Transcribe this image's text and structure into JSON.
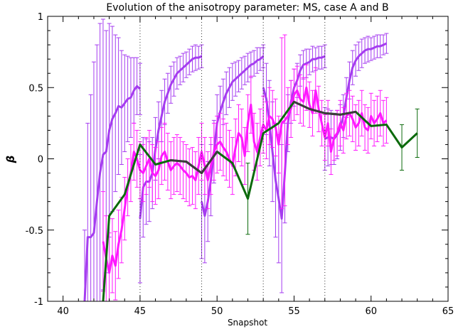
{
  "chart_data": {
    "type": "line",
    "title": "Evolution of the anisotropy parameter: MS, case A and B",
    "xlabel": "Snapshot",
    "ylabel": "β",
    "xlim": [
      39,
      65
    ],
    "ylim": [
      -1,
      1
    ],
    "x_ticks": [
      "40",
      "45",
      "50",
      "55",
      "60",
      "65"
    ],
    "y_ticks": [
      "-1",
      "-0.5",
      "0",
      "0.5",
      "1"
    ],
    "grid": false,
    "vlines": [
      45,
      49,
      53,
      57
    ],
    "colors": {
      "purple": "#a53cf0",
      "magenta": "#ff18ff",
      "green": "#0c6a0c",
      "dark": "#3c3c3c",
      "vline": "#333333"
    },
    "series": [
      {
        "color_key": "purple",
        "x": [
          41.4,
          41.6,
          41.8,
          42.0,
          42.2,
          42.4,
          42.6,
          42.8,
          43.0,
          43.2,
          43.4,
          43.6,
          43.8,
          44.0,
          44.2,
          44.4,
          44.6,
          44.8,
          45.0
        ],
        "y": [
          -1.0,
          -0.55,
          -0.55,
          -0.52,
          -0.3,
          -0.1,
          0.03,
          0.05,
          0.2,
          0.28,
          0.32,
          0.37,
          0.36,
          0.39,
          0.42,
          0.43,
          0.48,
          0.51,
          0.49
        ],
        "err": [
          0.5,
          0.8,
          1.0,
          1.2,
          1.1,
          1.05,
          0.95,
          0.85,
          0.75,
          0.65,
          0.55,
          0.48,
          0.4,
          0.34,
          0.3,
          0.28,
          0.23,
          0.2,
          0.18
        ]
      },
      {
        "color_key": "purple",
        "x": [
          45.0,
          45.2,
          45.4,
          45.6,
          45.8,
          46.0,
          46.2,
          46.4,
          46.6,
          46.8,
          47.0,
          47.2,
          47.4,
          47.6,
          47.8,
          48.0,
          48.2,
          48.4,
          48.6,
          48.8,
          49.0
        ],
        "y": [
          -0.42,
          -0.2,
          -0.16,
          -0.16,
          -0.1,
          0.07,
          0.2,
          0.3,
          0.4,
          0.46,
          0.52,
          0.56,
          0.6,
          0.62,
          0.64,
          0.66,
          0.68,
          0.7,
          0.71,
          0.71,
          0.72
        ],
        "err": [
          0.45,
          0.35,
          0.3,
          0.28,
          0.25,
          0.22,
          0.2,
          0.18,
          0.16,
          0.14,
          0.13,
          0.12,
          0.11,
          0.1,
          0.1,
          0.09,
          0.09,
          0.09,
          0.09,
          0.08,
          0.08
        ]
      },
      {
        "color_key": "purple",
        "x": [
          49.0,
          49.2,
          49.4,
          49.6,
          49.8,
          50.0,
          50.2,
          50.4,
          50.6,
          50.8,
          51.0,
          51.2,
          51.4,
          51.6,
          51.8,
          52.0,
          52.2,
          52.4,
          52.6,
          52.8,
          53.0
        ],
        "y": [
          -0.3,
          -0.4,
          -0.3,
          -0.15,
          0.05,
          0.25,
          0.33,
          0.4,
          0.46,
          0.5,
          0.54,
          0.56,
          0.58,
          0.6,
          0.62,
          0.64,
          0.66,
          0.67,
          0.69,
          0.7,
          0.72
        ],
        "err": [
          0.4,
          0.33,
          0.28,
          0.25,
          0.22,
          0.2,
          0.18,
          0.16,
          0.15,
          0.14,
          0.13,
          0.12,
          0.11,
          0.11,
          0.1,
          0.1,
          0.09,
          0.09,
          0.09,
          0.08,
          0.08
        ]
      },
      {
        "color_key": "purple",
        "x": [
          53.0,
          53.2,
          53.4,
          53.6,
          53.8,
          54.0,
          54.2,
          54.4,
          54.6,
          54.8,
          55.0,
          55.2,
          55.4,
          55.6,
          55.8,
          56.0,
          56.2,
          56.4,
          56.6,
          56.8,
          57.0
        ],
        "y": [
          0.5,
          0.42,
          0.25,
          0.05,
          -0.15,
          -0.28,
          -0.42,
          -0.1,
          0.25,
          0.4,
          0.5,
          0.55,
          0.62,
          0.66,
          0.67,
          0.68,
          0.7,
          0.7,
          0.71,
          0.71,
          0.72
        ],
        "err": [
          0.28,
          0.25,
          0.3,
          0.35,
          0.4,
          0.45,
          0.52,
          0.35,
          0.2,
          0.15,
          0.13,
          0.12,
          0.11,
          0.1,
          0.1,
          0.09,
          0.09,
          0.08,
          0.08,
          0.08,
          0.08
        ]
      },
      {
        "color_key": "purple",
        "x": [
          57.0,
          57.2,
          57.4,
          57.6,
          57.8,
          58.0,
          58.2,
          58.4,
          58.6,
          58.8,
          59.0,
          59.2,
          59.4,
          59.6,
          59.8,
          60.0,
          60.2,
          60.4,
          60.6,
          60.8,
          61.0
        ],
        "y": [
          0.14,
          0.15,
          0.15,
          0.14,
          0.17,
          0.22,
          0.3,
          0.43,
          0.55,
          0.64,
          0.69,
          0.72,
          0.74,
          0.76,
          0.77,
          0.77,
          0.78,
          0.79,
          0.79,
          0.8,
          0.81
        ],
        "err": [
          0.22,
          0.2,
          0.19,
          0.18,
          0.17,
          0.16,
          0.15,
          0.14,
          0.13,
          0.12,
          0.11,
          0.1,
          0.1,
          0.09,
          0.09,
          0.08,
          0.08,
          0.08,
          0.08,
          0.07,
          0.07
        ]
      },
      {
        "color_key": "magenta",
        "x": [
          42.6,
          42.8,
          43.0,
          43.2,
          43.4,
          43.6,
          43.8,
          44.0,
          44.2,
          44.4,
          44.6,
          44.8,
          45.0,
          45.2,
          45.4,
          45.6,
          45.8,
          46.0,
          46.2,
          46.4,
          46.6,
          46.8,
          47.0,
          47.2,
          47.4,
          47.6,
          47.8,
          48.0,
          48.2,
          48.4,
          48.6,
          48.8,
          49.0,
          49.2,
          49.4,
          49.6,
          49.8,
          50.0,
          50.2,
          50.4,
          50.6,
          50.8,
          51.0,
          51.2,
          51.4,
          51.6,
          51.8,
          52.0,
          52.2,
          52.4,
          52.6,
          52.8,
          53.0,
          53.2,
          53.4,
          53.6,
          53.8,
          54.0,
          54.2,
          54.4,
          54.6,
          54.8,
          55.0,
          55.2,
          55.4,
          55.6,
          55.8,
          56.0,
          56.2,
          56.4,
          56.6,
          56.8,
          57.0,
          57.2,
          57.4,
          57.6,
          57.8,
          58.0,
          58.2,
          58.4,
          58.6,
          58.8,
          59.0,
          59.2,
          59.4,
          59.6,
          59.8,
          60.0,
          60.2,
          60.4,
          60.6,
          60.8,
          61.0
        ],
        "y": [
          -0.58,
          -0.7,
          -0.8,
          -0.68,
          -0.75,
          -0.6,
          -0.5,
          -0.35,
          -0.2,
          -0.1,
          0.05,
          0.0,
          -0.08,
          -0.1,
          -0.05,
          0.0,
          -0.1,
          -0.12,
          -0.08,
          0.02,
          0.05,
          -0.02,
          -0.08,
          -0.05,
          -0.03,
          -0.05,
          -0.08,
          -0.1,
          -0.13,
          -0.12,
          -0.15,
          -0.05,
          0.05,
          -0.05,
          -0.15,
          -0.05,
          0.05,
          0.1,
          0.12,
          0.08,
          0.05,
          0.0,
          -0.05,
          0.08,
          0.18,
          0.15,
          0.02,
          0.25,
          0.38,
          0.12,
          0.05,
          0.15,
          0.24,
          0.2,
          0.3,
          0.28,
          0.22,
          0.1,
          0.25,
          0.27,
          0.3,
          0.35,
          0.45,
          0.48,
          0.42,
          0.4,
          0.5,
          0.38,
          0.32,
          0.48,
          0.35,
          0.25,
          0.15,
          0.25,
          0.05,
          0.15,
          0.18,
          0.25,
          0.2,
          0.3,
          0.32,
          0.28,
          0.22,
          0.25,
          0.32,
          0.22,
          0.2,
          0.3,
          0.25,
          0.28,
          0.32,
          0.25,
          0.27
        ],
        "err": [
          0.35,
          0.3,
          0.28,
          0.26,
          0.24,
          0.24,
          0.23,
          0.22,
          0.2,
          0.2,
          0.2,
          0.2,
          0.2,
          0.2,
          0.2,
          0.2,
          0.2,
          0.2,
          0.2,
          0.2,
          0.2,
          0.2,
          0.2,
          0.2,
          0.2,
          0.2,
          0.2,
          0.2,
          0.2,
          0.2,
          0.2,
          0.2,
          0.2,
          0.2,
          0.2,
          0.2,
          0.2,
          0.2,
          0.2,
          0.2,
          0.2,
          0.2,
          0.2,
          0.2,
          0.2,
          0.2,
          0.2,
          0.2,
          0.2,
          0.2,
          0.2,
          0.2,
          0.2,
          0.2,
          0.2,
          0.2,
          0.2,
          0.2,
          0.6,
          0.6,
          0.2,
          0.2,
          0.18,
          0.17,
          0.17,
          0.17,
          0.16,
          0.16,
          0.16,
          0.16,
          0.16,
          0.16,
          0.16,
          0.16,
          0.16,
          0.16,
          0.16,
          0.16,
          0.16,
          0.16,
          0.16,
          0.16,
          0.16,
          0.16,
          0.16,
          0.16,
          0.16,
          0.16,
          0.16,
          0.16,
          0.16,
          0.16,
          0.16
        ]
      },
      {
        "color_key": "green",
        "x": [
          42.6,
          43.0,
          44.0,
          45.0,
          46.0,
          47.0,
          48.0,
          49.0,
          50.0,
          51.0,
          52.0,
          53.0,
          54.0,
          55.0,
          56.0,
          57.0,
          58.0,
          59.0,
          60.0,
          61.0,
          62.0,
          63.0
        ],
        "y": [
          -1.0,
          -0.4,
          -0.25,
          0.1,
          -0.04,
          -0.01,
          -0.02,
          -0.1,
          0.05,
          -0.03,
          -0.28,
          0.18,
          0.25,
          0.4,
          0.35,
          0.32,
          0.31,
          0.33,
          0.23,
          0.24,
          0.08,
          0.18
        ],
        "err": [
          0.0,
          0.0,
          0.0,
          0.0,
          0.0,
          0.0,
          0.0,
          0.0,
          0.0,
          0.0,
          0.25,
          0.0,
          0.0,
          0.0,
          0.0,
          0.0,
          0.0,
          0.0,
          0.0,
          0.0,
          0.16,
          0.17
        ]
      }
    ]
  }
}
